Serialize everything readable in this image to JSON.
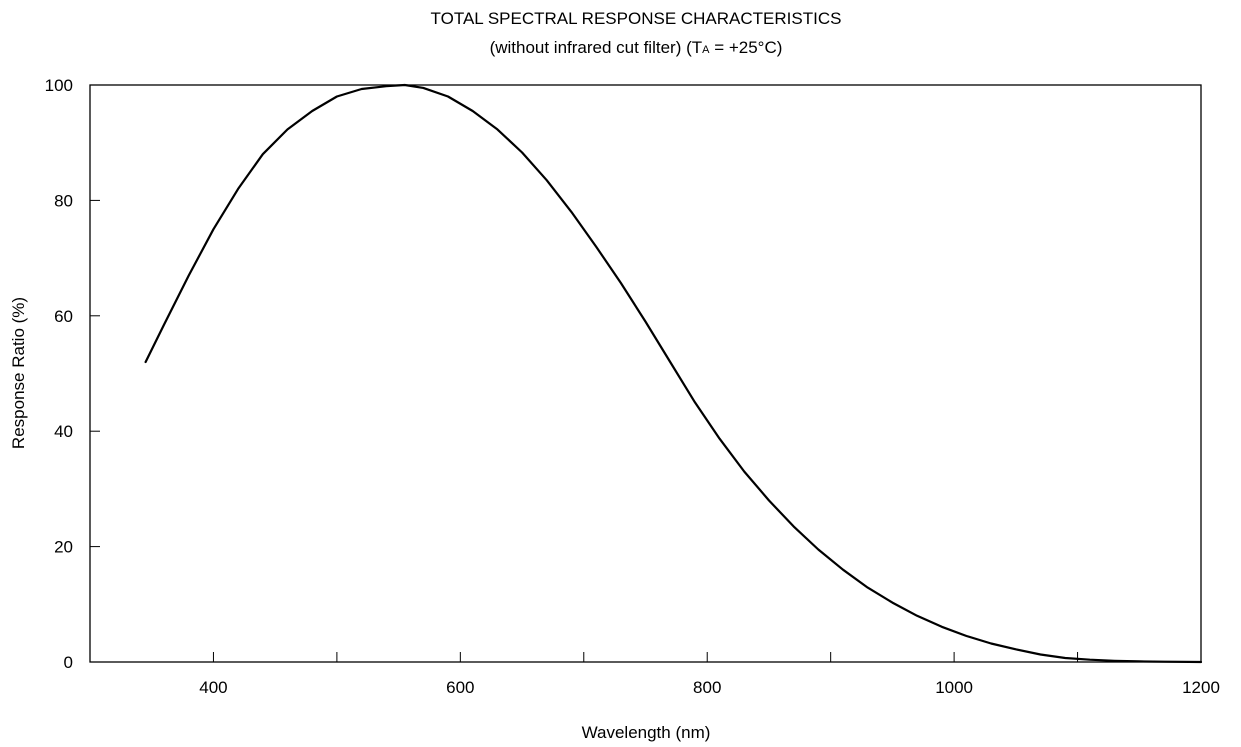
{
  "chart_data": {
    "type": "line",
    "title": "TOTAL SPECTRAL RESPONSE CHARACTERISTICS",
    "subtitle": {
      "prefix": "(without infrared cut filter) (T",
      "subscript": "A",
      "suffix": " = +25°C)"
    },
    "xlabel": "Wavelength (nm)",
    "ylabel": "Response Ratio (%)",
    "xlim": [
      300,
      1200
    ],
    "ylim": [
      0,
      100
    ],
    "x_ticks": [
      400,
      600,
      800,
      1000,
      1200
    ],
    "x_tick_labels": [
      "400",
      "600",
      "800",
      "1000",
      "1200"
    ],
    "x_minor_ticks": [
      500,
      700,
      900,
      1100
    ],
    "y_ticks": [
      0,
      20,
      40,
      60,
      80,
      100
    ],
    "y_tick_labels": [
      "0",
      "20",
      "40",
      "60",
      "80",
      "100"
    ],
    "grid": false,
    "line_color": "#000000",
    "series": [
      {
        "x": [
          345,
          360,
          380,
          400,
          420,
          440,
          460,
          480,
          500,
          520,
          540,
          555,
          570,
          590,
          610,
          630,
          650,
          670,
          690,
          710,
          730,
          750,
          770,
          790,
          810,
          830,
          850,
          870,
          890,
          910,
          930,
          950,
          970,
          990,
          1010,
          1030,
          1050,
          1070,
          1090,
          1110,
          1130,
          1150,
          1170,
          1200
        ],
        "y": [
          52,
          58.5,
          67,
          75,
          82,
          88,
          92.3,
          95.5,
          98,
          99.3,
          99.8,
          100,
          99.5,
          98,
          95.5,
          92.3,
          88.3,
          83.5,
          78,
          72,
          65.7,
          59,
          52,
          45,
          38.7,
          33,
          28,
          23.5,
          19.5,
          16,
          12.9,
          10.3,
          8,
          6.1,
          4.5,
          3.2,
          2.2,
          1.3,
          0.7,
          0.4,
          0.2,
          0.1,
          0.05,
          0
        ]
      }
    ]
  }
}
